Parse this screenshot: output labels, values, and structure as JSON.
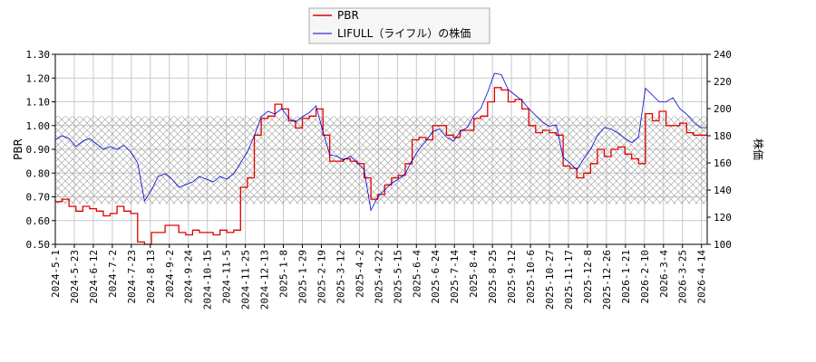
{
  "chart_data": {
    "type": "line",
    "legend_position": "top-center",
    "grid": true,
    "y_left_label": "PBR",
    "y_right_label": "株価",
    "y_left_lim": [
      0.5,
      1.3
    ],
    "y_right_lim": [
      100,
      240
    ],
    "y_left_ticks": [
      "0.50",
      "0.60",
      "0.70",
      "0.80",
      "0.90",
      "1.00",
      "1.10",
      "1.20",
      "1.30"
    ],
    "y_right_ticks": [
      "100",
      "120",
      "140",
      "160",
      "180",
      "200",
      "220",
      "240"
    ],
    "x_ticks": [
      "2024-5-1",
      "2024-5-23",
      "2024-6-12",
      "2024-7-2",
      "2024-7-23",
      "2024-8-13",
      "2024-9-2",
      "2024-9-24",
      "2024-10-15",
      "2024-11-5",
      "2024-11-25",
      "2024-12-13",
      "2025-1-8",
      "2025-1-29",
      "2025-2-19",
      "2025-3-12",
      "2025-4-2",
      "2025-4-22",
      "2025-5-15",
      "2025-6-4",
      "2025-6-24",
      "2025-7-14",
      "2025-8-4",
      "2025-8-25",
      "2025-9-12",
      "2025-10-6",
      "2025-10-27",
      "2025-11-17",
      "2025-12-8",
      "2025-12-26",
      "2026-1-21",
      "2026-2-10",
      "2026-3-4",
      "2026-3-25",
      "2026-4-14"
    ],
    "band": {
      "low": 0.67,
      "high": 1.04
    },
    "series": [
      {
        "name": "PBR",
        "axis": "left",
        "color": "#e00000",
        "values": [
          0.68,
          0.69,
          0.66,
          0.64,
          0.66,
          0.65,
          0.64,
          0.62,
          0.63,
          0.66,
          0.64,
          0.63,
          0.51,
          0.5,
          0.55,
          0.55,
          0.58,
          0.58,
          0.55,
          0.54,
          0.56,
          0.55,
          0.55,
          0.54,
          0.56,
          0.55,
          0.56,
          0.74,
          0.78,
          0.96,
          1.03,
          1.04,
          1.09,
          1.07,
          1.02,
          0.99,
          1.03,
          1.04,
          1.07,
          0.96,
          0.85,
          0.85,
          0.86,
          0.85,
          0.84,
          0.78,
          0.69,
          0.71,
          0.75,
          0.78,
          0.79,
          0.84,
          0.94,
          0.95,
          0.94,
          1.0,
          1.0,
          0.96,
          0.95,
          0.98,
          0.98,
          1.03,
          1.04,
          1.1,
          1.16,
          1.15,
          1.1,
          1.11,
          1.07,
          1.0,
          0.97,
          0.98,
          0.97,
          0.96,
          0.83,
          0.82,
          0.78,
          0.8,
          0.84,
          0.9,
          0.87,
          0.9,
          0.91,
          0.88,
          0.86,
          0.84,
          1.05,
          1.02,
          1.06,
          1.0,
          1.0,
          1.01,
          0.97,
          0.96,
          0.96,
          0.96
        ]
      },
      {
        "name": "LIFULL（ライフル）の株価",
        "axis": "right",
        "color": "#0000cc",
        "values": [
          177,
          180,
          178,
          172,
          176,
          178,
          174,
          170,
          172,
          170,
          173,
          168,
          160,
          132,
          140,
          150,
          152,
          148,
          142,
          144,
          146,
          150,
          148,
          146,
          150,
          148,
          152,
          160,
          168,
          180,
          194,
          198,
          196,
          200,
          193,
          190,
          194,
          197,
          202,
          183,
          166,
          165,
          162,
          165,
          160,
          155,
          125,
          135,
          140,
          145,
          148,
          152,
          162,
          170,
          176,
          183,
          185,
          179,
          176,
          183,
          186,
          195,
          200,
          212,
          226,
          225,
          214,
          210,
          206,
          200,
          195,
          190,
          187,
          188,
          164,
          160,
          155,
          163,
          170,
          180,
          186,
          185,
          182,
          178,
          175,
          179,
          215,
          210,
          205,
          205,
          208,
          200,
          196,
          190,
          186,
          186
        ]
      }
    ]
  }
}
